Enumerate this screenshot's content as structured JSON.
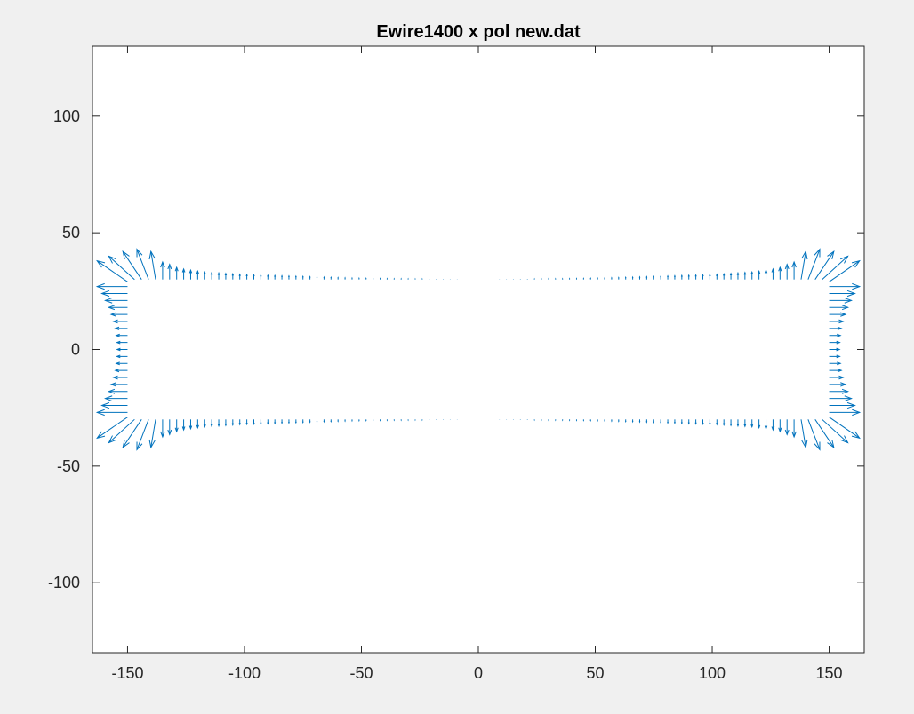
{
  "chart_data": {
    "type": "quiver",
    "title": "Ewire1400 x pol new.dat",
    "xlabel": "",
    "ylabel": "",
    "xlim": [
      -165,
      165
    ],
    "ylim": [
      -130,
      130
    ],
    "xticks": [
      -150,
      -100,
      -50,
      0,
      50,
      100,
      150
    ],
    "yticks": [
      -100,
      -50,
      0,
      50,
      100
    ],
    "xtick_labels": [
      "-150",
      "-100",
      "-50",
      "0",
      "50",
      "100",
      "150"
    ],
    "ytick_labels": [
      "-100",
      "-50",
      "0",
      "50",
      "100"
    ],
    "grid": false,
    "box": true,
    "series_color": "#0072BD",
    "boundary": {
      "x_half_width": 150,
      "y_half_height": 30
    },
    "top_edge_vectors": [
      {
        "x": -135,
        "v": 7.5
      },
      {
        "x": -132,
        "v": 6.5
      },
      {
        "x": -129,
        "v": 5.2
      },
      {
        "x": -126,
        "v": 4.5
      },
      {
        "x": -123,
        "v": 4.0
      },
      {
        "x": -120,
        "v": 3.6
      },
      {
        "x": -117,
        "v": 3.2
      },
      {
        "x": -114,
        "v": 3.0
      },
      {
        "x": -111,
        "v": 2.8
      },
      {
        "x": -108,
        "v": 2.6
      },
      {
        "x": -105,
        "v": 2.4
      },
      {
        "x": -102,
        "v": 2.2
      },
      {
        "x": -99,
        "v": 2.1
      },
      {
        "x": -96,
        "v": 2.0
      },
      {
        "x": -93,
        "v": 1.9
      },
      {
        "x": -90,
        "v": 1.8
      },
      {
        "x": -87,
        "v": 1.7
      },
      {
        "x": -84,
        "v": 1.6
      },
      {
        "x": -81,
        "v": 1.5
      },
      {
        "x": -78,
        "v": 1.4
      },
      {
        "x": -75,
        "v": 1.3
      },
      {
        "x": -72,
        "v": 1.2
      },
      {
        "x": -69,
        "v": 1.1
      },
      {
        "x": -66,
        "v": 1.0
      },
      {
        "x": -63,
        "v": 0.9
      },
      {
        "x": -60,
        "v": 0.8
      },
      {
        "x": -57,
        "v": 0.7
      },
      {
        "x": -54,
        "v": 0.6
      },
      {
        "x": -51,
        "v": 0.55
      },
      {
        "x": -48,
        "v": 0.5
      },
      {
        "x": -45,
        "v": 0.45
      },
      {
        "x": -42,
        "v": 0.4
      },
      {
        "x": -39,
        "v": 0.35
      },
      {
        "x": -36,
        "v": 0.3
      },
      {
        "x": -33,
        "v": 0.28
      },
      {
        "x": -30,
        "v": 0.25
      },
      {
        "x": -27,
        "v": 0.22
      },
      {
        "x": -24,
        "v": 0.2
      },
      {
        "x": -21,
        "v": 0.18
      },
      {
        "x": -18,
        "v": 0.15
      },
      {
        "x": -15,
        "v": 0.13
      },
      {
        "x": -12,
        "v": 0.1
      },
      {
        "x": -9,
        "v": 0.08
      },
      {
        "x": 9,
        "v": 0.08
      },
      {
        "x": 12,
        "v": 0.1
      },
      {
        "x": 15,
        "v": 0.13
      },
      {
        "x": 18,
        "v": 0.15
      },
      {
        "x": 21,
        "v": 0.18
      },
      {
        "x": 24,
        "v": 0.2
      },
      {
        "x": 27,
        "v": 0.22
      },
      {
        "x": 30,
        "v": 0.25
      },
      {
        "x": 33,
        "v": 0.28
      },
      {
        "x": 36,
        "v": 0.3
      },
      {
        "x": 39,
        "v": 0.35
      },
      {
        "x": 42,
        "v": 0.4
      },
      {
        "x": 45,
        "v": 0.45
      },
      {
        "x": 48,
        "v": 0.5
      },
      {
        "x": 51,
        "v": 0.55
      },
      {
        "x": 54,
        "v": 0.6
      },
      {
        "x": 57,
        "v": 0.7
      },
      {
        "x": 60,
        "v": 0.8
      },
      {
        "x": 63,
        "v": 0.9
      },
      {
        "x": 66,
        "v": 1.0
      },
      {
        "x": 69,
        "v": 1.1
      },
      {
        "x": 72,
        "v": 1.2
      },
      {
        "x": 75,
        "v": 1.3
      },
      {
        "x": 78,
        "v": 1.4
      },
      {
        "x": 81,
        "v": 1.5
      },
      {
        "x": 84,
        "v": 1.6
      },
      {
        "x": 87,
        "v": 1.7
      },
      {
        "x": 90,
        "v": 1.8
      },
      {
        "x": 93,
        "v": 1.9
      },
      {
        "x": 96,
        "v": 2.0
      },
      {
        "x": 99,
        "v": 2.1
      },
      {
        "x": 102,
        "v": 2.2
      },
      {
        "x": 105,
        "v": 2.4
      },
      {
        "x": 108,
        "v": 2.6
      },
      {
        "x": 111,
        "v": 2.8
      },
      {
        "x": 114,
        "v": 3.0
      },
      {
        "x": 117,
        "v": 3.2
      },
      {
        "x": 120,
        "v": 3.6
      },
      {
        "x": 123,
        "v": 4.0
      },
      {
        "x": 126,
        "v": 4.5
      },
      {
        "x": 129,
        "v": 5.2
      },
      {
        "x": 132,
        "v": 6.5
      },
      {
        "x": 135,
        "v": 7.5
      }
    ],
    "side_edge_vectors": [
      {
        "y": -27,
        "u": 13
      },
      {
        "y": -24,
        "u": 11
      },
      {
        "y": -21,
        "u": 9.5
      },
      {
        "y": -18,
        "u": 8.0
      },
      {
        "y": -15,
        "u": 7.0
      },
      {
        "y": -12,
        "u": 6.0
      },
      {
        "y": -9,
        "u": 5.2
      },
      {
        "y": -6,
        "u": 4.8
      },
      {
        "y": -3,
        "u": 4.5
      },
      {
        "y": 0,
        "u": 4.4
      },
      {
        "y": 3,
        "u": 4.5
      },
      {
        "y": 6,
        "u": 4.8
      },
      {
        "y": 9,
        "u": 5.2
      },
      {
        "y": 12,
        "u": 6.0
      },
      {
        "y": 15,
        "u": 7.0
      },
      {
        "y": 18,
        "u": 8.0
      },
      {
        "y": 21,
        "u": 9.5
      },
      {
        "y": 24,
        "u": 11
      },
      {
        "y": 27,
        "u": 13
      }
    ],
    "corner_vectors": [
      {
        "x": 150,
        "y": 29,
        "u": 13,
        "v": 9
      },
      {
        "x": 147,
        "y": 30,
        "u": 11,
        "v": 10
      },
      {
        "x": 144,
        "y": 30,
        "u": 8,
        "v": 12
      },
      {
        "x": 141,
        "y": 30,
        "u": 5,
        "v": 13
      },
      {
        "x": 138,
        "y": 30,
        "u": 2,
        "v": 12
      }
    ]
  }
}
